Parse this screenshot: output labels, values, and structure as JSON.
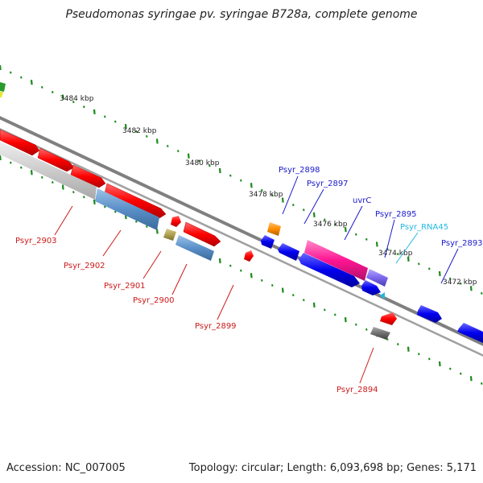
{
  "title": "Pseudomonas syringae pv. syringae B728a, complete genome",
  "kbp_labels": [
    "3484 kbp",
    "3482 kbp",
    "3480 kbp",
    "3478 kbp",
    "3476 kbp",
    "3474 kbp",
    "3472 kbp"
  ],
  "gene_labels_top": [
    "Psyr_2898",
    "Psyr_2897",
    "uvrC",
    "Psyr_2895",
    "Psyr_RNA45",
    "Psyr_2893"
  ],
  "gene_labels_bottom": [
    "Psyr_2903",
    "Psyr_2902",
    "Psyr_2901",
    "Psyr_2900",
    "Psyr_2899",
    "Psyr_2894"
  ],
  "footer": {
    "accession": "Accession: NC_007005",
    "topology": "Topology: circular; Length: 6,093,698 bp; Genes: 5,171"
  },
  "colors": {
    "forward": "#ff0000",
    "reverse": "#0000ee",
    "rrna": "#ff8c00",
    "ncrna": "#ff1493",
    "misc": "#7b68ee",
    "pseudo": "#5a8fc8",
    "ticks": "#1a8a1a",
    "backbone": "#808080"
  }
}
